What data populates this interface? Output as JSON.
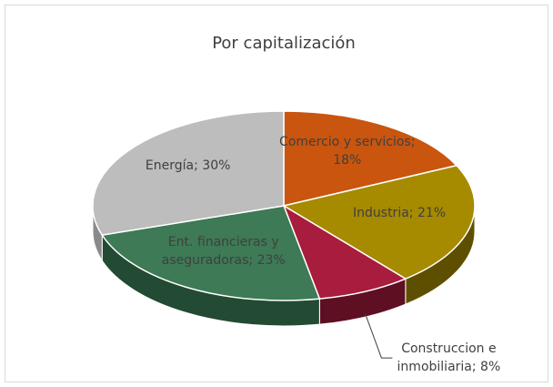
{
  "chart_data": {
    "type": "pie",
    "title": "Por capitalización",
    "categories": [
      "Comercio y servicios;",
      "Industria;",
      "Construccion e inmobiliaria;",
      "Ent. financieras y aseguradoras;",
      "Energía;"
    ],
    "values": [
      18,
      21,
      8,
      23,
      30
    ],
    "value_labels": [
      "18%",
      "21%",
      "8%",
      "23%",
      "30%"
    ],
    "colors": [
      "#c9550f",
      "#a68a00",
      "#a81c3e",
      "#3d7a55",
      "#bdbdbd"
    ],
    "side_colors": [
      "#8a3a0a",
      "#5e4f00",
      "#5e0f22",
      "#234a33",
      "#8a8a8a"
    ]
  }
}
